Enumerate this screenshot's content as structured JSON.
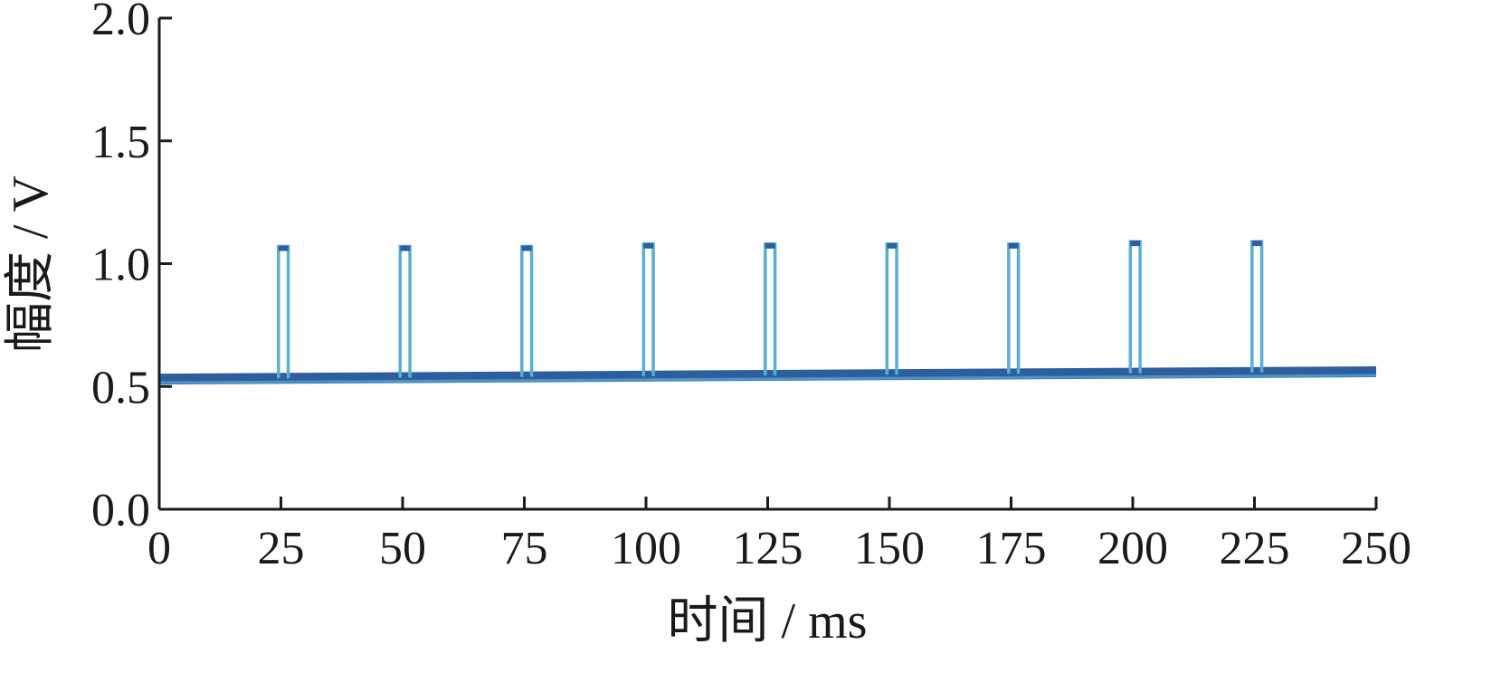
{
  "chart_data": {
    "type": "line",
    "title": "",
    "xlabel": "时间 / ms",
    "ylabel": "幅度 / V",
    "xlim": [
      0,
      250
    ],
    "ylim": [
      0,
      2.0
    ],
    "x_ticks": [
      0,
      25,
      50,
      75,
      100,
      125,
      150,
      175,
      200,
      225,
      250
    ],
    "x_tick_labels": [
      "0",
      "25",
      "50",
      "75",
      "100",
      "125",
      "150",
      "175",
      "200",
      "225",
      "250"
    ],
    "y_ticks": [
      0,
      0.5,
      1.0,
      1.5,
      2.0
    ],
    "y_tick_labels": [
      "0.0",
      "0.5",
      "1.0",
      "1.5",
      "2.0"
    ],
    "grid": false,
    "legend": "none",
    "series": [
      {
        "pulse_width_ms": 2,
        "baseline_start_V": 0.53,
        "baseline_end_V": 0.56,
        "pulse_starts_ms": [
          24.5,
          49.5,
          74.5,
          99.5,
          124.5,
          149.5,
          174.5,
          199.5,
          224.5
        ],
        "pulse_peaks_V": [
          1.07,
          1.07,
          1.07,
          1.08,
          1.08,
          1.08,
          1.08,
          1.09,
          1.09
        ],
        "color": "#5aaed6",
        "baseline_color": "#2e5e9e"
      }
    ]
  }
}
